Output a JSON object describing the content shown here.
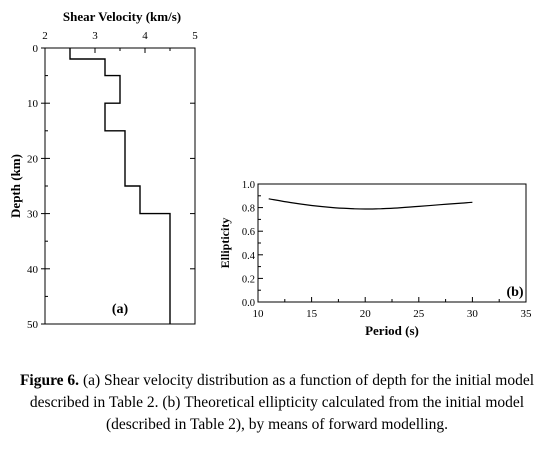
{
  "chart_data": [
    {
      "type": "line",
      "panel_label": "(a)",
      "xlabel": "Shear Velocity (km/s)",
      "ylabel": "Depth (km)",
      "xlim": [
        2,
        5
      ],
      "ylim": [
        0,
        50
      ],
      "y_inverted": true,
      "x_axis_position": "top",
      "x_ticks": [
        2,
        3,
        4,
        5
      ],
      "y_ticks": [
        0,
        10,
        20,
        30,
        40,
        50
      ],
      "step_profile": [
        {
          "velocity": 2.5,
          "depth_top": 0,
          "depth_bottom": 2
        },
        {
          "velocity": 3.2,
          "depth_top": 2,
          "depth_bottom": 5
        },
        {
          "velocity": 3.5,
          "depth_top": 5,
          "depth_bottom": 10
        },
        {
          "velocity": 3.2,
          "depth_top": 10,
          "depth_bottom": 15
        },
        {
          "velocity": 3.6,
          "depth_top": 15,
          "depth_bottom": 25
        },
        {
          "velocity": 3.9,
          "depth_top": 25,
          "depth_bottom": 30
        },
        {
          "velocity": 4.5,
          "depth_top": 30,
          "depth_bottom": 50
        }
      ]
    },
    {
      "type": "line",
      "panel_label": "(b)",
      "xlabel": "Period (s)",
      "ylabel": "Ellipticity",
      "xlim": [
        10,
        35
      ],
      "ylim": [
        0.0,
        1.0
      ],
      "x_ticks": [
        10,
        15,
        20,
        25,
        30,
        35
      ],
      "y_ticks": [
        "0.0",
        "0.2",
        "0.4",
        "0.6",
        "0.8",
        "1.0"
      ],
      "x": [
        11,
        13,
        15,
        17,
        19,
        20,
        21,
        23,
        25,
        27,
        29,
        30
      ],
      "y": [
        0.875,
        0.843,
        0.818,
        0.8,
        0.79,
        0.788,
        0.789,
        0.797,
        0.81,
        0.825,
        0.838,
        0.845
      ]
    }
  ],
  "caption": {
    "label": "Figure 6.",
    "text": " (a) Shear velocity distribution as a function of depth for the initial model described in Table 2. (b) Theoretical ellipticity calculated from the initial model (described in Table 2), by means of forward modelling."
  }
}
